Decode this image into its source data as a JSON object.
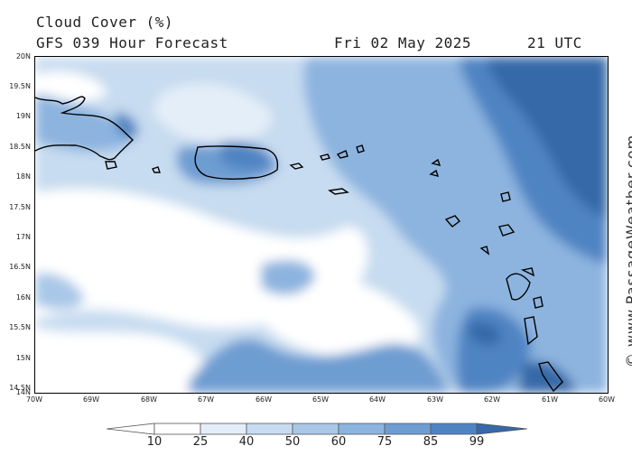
{
  "header": {
    "title": "Cloud Cover (%)",
    "forecast": "GFS 039 Hour Forecast",
    "date": "Fri 02 May 2025",
    "time": "21 UTC"
  },
  "map": {
    "lat_labels": [
      "20N",
      "19.5N",
      "19N",
      "18.5N",
      "18N",
      "17.5N",
      "17N",
      "16.5N",
      "16N",
      "15.5N",
      "15N",
      "14.5N",
      "14N"
    ],
    "lon_labels": [
      "70W",
      "69W",
      "68W",
      "67W",
      "66W",
      "65W",
      "64W",
      "63W",
      "62W",
      "61W",
      "60W"
    ]
  },
  "credit": "© www.PassageWeather.com",
  "legend": {
    "labels": [
      "10",
      "25",
      "40",
      "50",
      "60",
      "75",
      "85",
      "99"
    ],
    "colors": [
      "#ffffff",
      "#e4eef8",
      "#c7dcf0",
      "#a9c8e8",
      "#8db4df",
      "#6e9dd2",
      "#4f84c3",
      "#3569a8"
    ]
  }
}
